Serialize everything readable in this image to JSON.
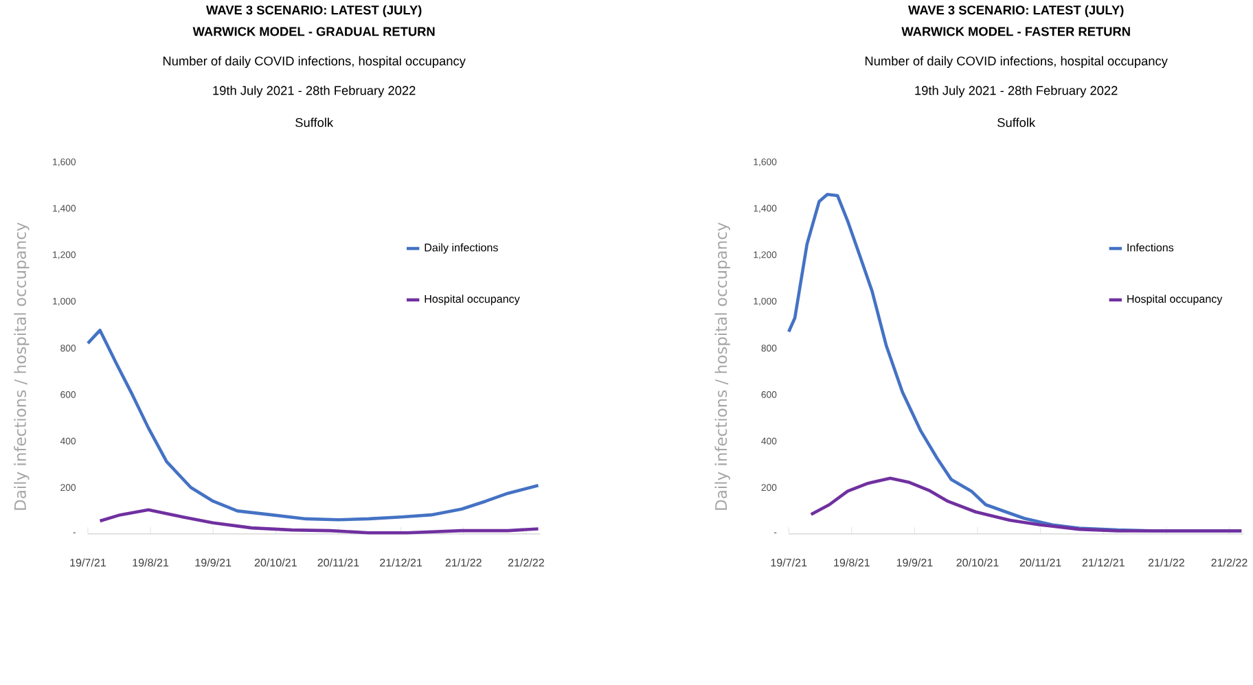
{
  "chart_data": [
    {
      "type": "line",
      "title": "WAVE 3 SCENARIO: LATEST (JULY)",
      "subtitle": "WARWICK MODEL - GRADUAL RETURN",
      "ylabel": "Daily infections / hospital occupancy",
      "annotations": [
        "Number of daily COVID infections, hospital occupancy",
        "19th July 2021 - 28th February 2022",
        "Suffolk"
      ],
      "series": [
        {
          "name": "Daily infections",
          "color": "#4472c4",
          "x": [
            "2021-07-19",
            "2021-07-25",
            "2021-08-02",
            "2021-08-10",
            "2021-08-18",
            "2021-08-27",
            "2021-09-08",
            "2021-09-19",
            "2021-10-01",
            "2021-10-18",
            "2021-11-04",
            "2021-11-20",
            "2021-12-05",
            "2021-12-21",
            "2022-01-05",
            "2022-01-20",
            "2022-02-01",
            "2022-02-12",
            "2022-02-27"
          ],
          "values": [
            821,
            877,
            736,
            600,
            456,
            311,
            200,
            141,
            99,
            82,
            65,
            61,
            65,
            73,
            82,
            107,
            141,
            175,
            209
          ]
        },
        {
          "name": "Hospital occupancy",
          "color": "#7030a0",
          "x": [
            "2021-07-25",
            "2021-08-04",
            "2021-08-18",
            "2021-09-04",
            "2021-09-19",
            "2021-10-08",
            "2021-10-28",
            "2021-11-16",
            "2021-12-05",
            "2021-12-24",
            "2022-01-20",
            "2022-02-12",
            "2022-02-27"
          ],
          "values": [
            56,
            82,
            104,
            73,
            48,
            26,
            17,
            14,
            5,
            5,
            14,
            14,
            22
          ]
        }
      ],
      "xlim": [
        "2021-07-19",
        "2022-02-28"
      ],
      "xticks": [
        {
          "value": "2021-07-19",
          "label": "19/7/21"
        },
        {
          "value": "2021-08-19",
          "label": "19/8/21"
        },
        {
          "value": "2021-09-19",
          "label": "19/9/21"
        },
        {
          "value": "2021-10-20",
          "label": "20/10/21"
        },
        {
          "value": "2021-11-20",
          "label": "20/11/21"
        },
        {
          "value": "2021-12-21",
          "label": "21/12/21"
        },
        {
          "value": "2022-01-21",
          "label": "21/1/22"
        },
        {
          "value": "2022-02-21",
          "label": "21/2/22"
        }
      ],
      "ylim": [
        0,
        1600
      ],
      "yticks": [
        {
          "value": 0,
          "label": "-"
        },
        200,
        400,
        600,
        800,
        {
          "value": 1000,
          "label": "1,000"
        },
        {
          "value": 1200,
          "label": "1,200"
        },
        {
          "value": 1400,
          "label": "1,400"
        },
        {
          "value": 1600,
          "label": "1,600"
        }
      ],
      "legend": "top right"
    },
    {
      "type": "line",
      "title": "WAVE 3 SCENARIO: LATEST (JULY)",
      "subtitle": "WARWICK MODEL - FASTER RETURN",
      "ylabel": "Daily infections / hospital occupancy",
      "annotations": [
        "Number of daily COVID infections, hospital occupancy",
        "19th July 2021 - 28th February 2022",
        "Suffolk"
      ],
      "series": [
        {
          "name": "Infections",
          "color": "#4472c4",
          "x": [
            "2021-07-19",
            "2021-07-22",
            "2021-07-28",
            "2021-08-03",
            "2021-08-07",
            "2021-08-12",
            "2021-08-17",
            "2021-08-23",
            "2021-08-29",
            "2021-09-05",
            "2021-09-13",
            "2021-09-22",
            "2021-09-30",
            "2021-10-07",
            "2021-10-17",
            "2021-10-24",
            "2021-11-01",
            "2021-11-12",
            "2021-11-26",
            "2021-12-09",
            "2021-12-28",
            "2022-01-16",
            "2022-02-27"
          ],
          "values": [
            871,
            930,
            1248,
            1432,
            1462,
            1457,
            1348,
            1198,
            1047,
            812,
            611,
            444,
            327,
            235,
            184,
            126,
            101,
            67,
            39,
            25,
            17,
            13,
            13
          ]
        },
        {
          "name": "Hospital occupancy",
          "color": "#7030a0",
          "x": [
            "2021-07-30",
            "2021-08-08",
            "2021-08-17",
            "2021-08-27",
            "2021-09-07",
            "2021-09-16",
            "2021-09-26",
            "2021-10-05",
            "2021-10-19",
            "2021-11-05",
            "2021-11-20",
            "2021-12-09",
            "2021-12-28",
            "2022-02-27"
          ],
          "values": [
            84,
            126,
            184,
            218,
            240,
            223,
            188,
            142,
            95,
            59,
            39,
            20,
            13,
            13
          ]
        }
      ],
      "xlim": [
        "2021-07-19",
        "2022-02-28"
      ],
      "xticks": [
        {
          "value": "2021-07-19",
          "label": "19/7/21"
        },
        {
          "value": "2021-08-19",
          "label": "19/8/21"
        },
        {
          "value": "2021-09-19",
          "label": "19/9/21"
        },
        {
          "value": "2021-10-20",
          "label": "20/10/21"
        },
        {
          "value": "2021-11-20",
          "label": "20/11/21"
        },
        {
          "value": "2021-12-21",
          "label": "21/12/21"
        },
        {
          "value": "2022-01-21",
          "label": "21/1/22"
        },
        {
          "value": "2022-02-21",
          "label": "21/2/22"
        }
      ],
      "ylim": [
        0,
        1600
      ],
      "yticks": [
        {
          "value": 0,
          "label": "-"
        },
        200,
        400,
        600,
        800,
        {
          "value": 1000,
          "label": "1,000"
        },
        {
          "value": 1200,
          "label": "1,200"
        },
        {
          "value": 1400,
          "label": "1,400"
        },
        {
          "value": 1600,
          "label": "1,600"
        }
      ],
      "legend": "top right"
    }
  ]
}
